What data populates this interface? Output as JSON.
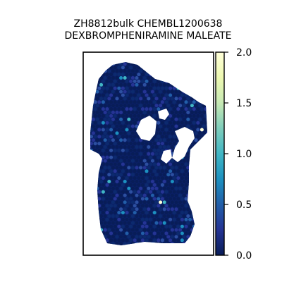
{
  "chart_data": {
    "type": "scatter",
    "title_lines": [
      "ZH8812bulk CHEMBL1200638",
      "DEXBROMPHENIRAMINE MALEATE"
    ],
    "xlabel": "",
    "ylabel": "",
    "colorbar": {
      "colormap": "YlGnBu",
      "range": [
        0,
        2.0
      ],
      "tick_labels": [
        "0.0",
        "0.5",
        "1.0",
        "1.5",
        "2.0"
      ],
      "tick_values": [
        0,
        0.5,
        1.0,
        1.5,
        2.0
      ]
    },
    "grid": false,
    "axes_ticks_visible": false,
    "colors": {
      "low": "#081d58",
      "mid": "#225ea8",
      "teal": "#41b6c4",
      "high": "#ffffd9"
    },
    "spot_value_summary": {
      "typical": 0.05,
      "max_observed": 1.8
    }
  }
}
